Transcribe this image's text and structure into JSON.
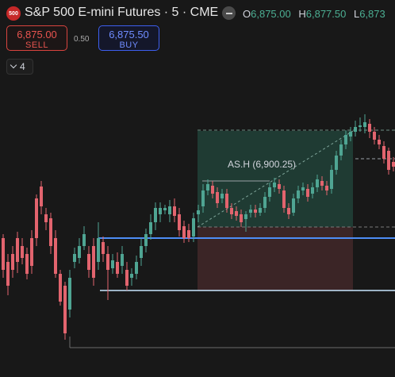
{
  "header": {
    "badge": "500",
    "title": "S&P 500 E-mini Futures · 5 · CME",
    "ohlc": [
      {
        "key": "O",
        "value": "6,875.00"
      },
      {
        "key": "H",
        "value": "6,877.50"
      },
      {
        "key": "L",
        "value": "6,873"
      }
    ]
  },
  "trade": {
    "sell_price": "6,875.00",
    "sell_label": "SELL",
    "spread": "0.50",
    "buy_price": "6,875.50",
    "buy_label": "BUY"
  },
  "indicators": {
    "count": "4"
  },
  "chart": {
    "annotation": "AS.H (6,900.25)",
    "colors": {
      "up": "#4fa593",
      "down": "#e2646e",
      "hline1": "#4d8df5",
      "hline2": "#c9e7ff",
      "profit": "#1f3b33",
      "loss": "#3b2526"
    }
  }
}
